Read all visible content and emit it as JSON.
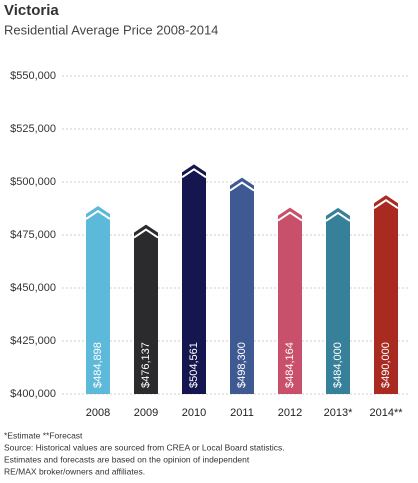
{
  "chart_data": {
    "type": "bar",
    "title": "Victoria",
    "subtitle": "Residential Average Price 2008-2014",
    "categories": [
      "2008",
      "2009",
      "2010",
      "2011",
      "2012",
      "2013*",
      "2014**"
    ],
    "values": [
      484898,
      476137,
      504561,
      498300,
      484164,
      484000,
      490000
    ],
    "value_labels": [
      "$484,898",
      "$476,137",
      "$504,561",
      "$498,300",
      "$484,164",
      "$484,000",
      "$490,000"
    ],
    "colors": [
      "#5cb9da",
      "#2b2b2d",
      "#15154f",
      "#3f5a92",
      "#c9506b",
      "#36809a",
      "#a82a20"
    ],
    "ylim": [
      400000,
      550000
    ],
    "yticks": [
      {
        "value": 400000,
        "label": "$400,000"
      },
      {
        "value": 425000,
        "label": "$425,000"
      },
      {
        "value": 450000,
        "label": "$450,000"
      },
      {
        "value": 475000,
        "label": "$475,000"
      },
      {
        "value": 500000,
        "label": "$500,000"
      },
      {
        "value": 525000,
        "label": "$525,000"
      },
      {
        "value": 550000,
        "label": "$550,000"
      }
    ],
    "grid": true,
    "notes": [
      "*Estimate **Forecast",
      "Source: Historical values are sourced from CREA or Local Board statistics.",
      "Estimates and forecasts are based on the opinion of independent",
      "RE/MAX broker/owners and affiliates."
    ]
  }
}
